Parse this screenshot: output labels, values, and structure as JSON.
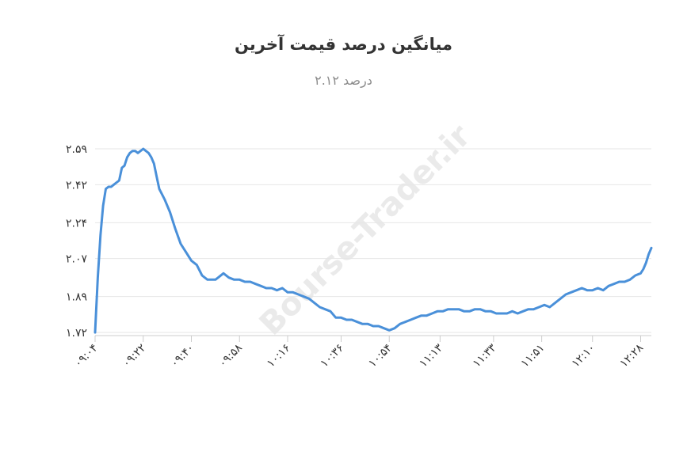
{
  "chart_data": {
    "type": "line",
    "title": "میانگین درصد قیمت آخرین",
    "subtitle": "درصد ۲.۱۲",
    "y_ticks": [
      "۱.۷۲",
      "۱.۸۹",
      "۲.۰۷",
      "۲.۲۴",
      "۲.۴۲",
      "۲.۵۹"
    ],
    "y_tick_values": [
      1.72,
      1.89,
      2.07,
      2.24,
      2.42,
      2.59
    ],
    "ylim": [
      1.72,
      2.59
    ],
    "x_ticks": [
      "۰۹:۰۴",
      "۰۹:۲۲",
      "۰۹:۴۰",
      "۰۹:۵۸",
      "۱۰:۱۶",
      "۱۰:۳۶",
      "۱۰:۵۴",
      "۱۱:۱۳",
      "۱۱:۳۳",
      "۱۱:۵۱",
      "۱۲:۱۰",
      "۱۲:۲۸"
    ],
    "x_tick_minutes": [
      544,
      562,
      580,
      598,
      616,
      636,
      654,
      673,
      693,
      711,
      730,
      748
    ],
    "xlim": [
      544,
      752
    ],
    "grid": true,
    "color": "#4a90d9",
    "series": [
      {
        "x": [
          544,
          545,
          546,
          547,
          548,
          549,
          550,
          551,
          553,
          554,
          555,
          556,
          557,
          558,
          559,
          560,
          561,
          562,
          563,
          564,
          565,
          566,
          567,
          568,
          570,
          572,
          574,
          576,
          578,
          580,
          582,
          584,
          585,
          586,
          588,
          589,
          590,
          592,
          594,
          596,
          598,
          600,
          602,
          604,
          606,
          608,
          610,
          612,
          614,
          616,
          618,
          620,
          622,
          624,
          626,
          628,
          630,
          632,
          634,
          636,
          638,
          640,
          642,
          644,
          646,
          648,
          650,
          652,
          654,
          656,
          658,
          660,
          662,
          664,
          666,
          668,
          670,
          672,
          674,
          676,
          678,
          680,
          682,
          684,
          686,
          688,
          690,
          692,
          694,
          696,
          698,
          700,
          702,
          704,
          706,
          708,
          710,
          712,
          714,
          716,
          718,
          720,
          722,
          724,
          726,
          728,
          730,
          732,
          734,
          736,
          738,
          740,
          742,
          744,
          746,
          748,
          749,
          750,
          751,
          752
        ],
        "y": [
          1.72,
          1.98,
          2.18,
          2.32,
          2.4,
          2.41,
          2.41,
          2.42,
          2.44,
          2.5,
          2.51,
          2.55,
          2.57,
          2.58,
          2.58,
          2.57,
          2.58,
          2.59,
          2.58,
          2.57,
          2.55,
          2.52,
          2.46,
          2.4,
          2.35,
          2.29,
          2.21,
          2.14,
          2.1,
          2.06,
          2.04,
          1.99,
          1.98,
          1.97,
          1.97,
          1.97,
          1.98,
          2.0,
          1.98,
          1.97,
          1.97,
          1.96,
          1.96,
          1.95,
          1.94,
          1.93,
          1.93,
          1.92,
          1.93,
          1.91,
          1.91,
          1.9,
          1.89,
          1.88,
          1.86,
          1.84,
          1.83,
          1.82,
          1.79,
          1.79,
          1.78,
          1.78,
          1.77,
          1.76,
          1.76,
          1.75,
          1.75,
          1.74,
          1.73,
          1.74,
          1.76,
          1.77,
          1.78,
          1.79,
          1.8,
          1.8,
          1.81,
          1.82,
          1.82,
          1.83,
          1.83,
          1.83,
          1.82,
          1.82,
          1.83,
          1.83,
          1.82,
          1.82,
          1.81,
          1.81,
          1.81,
          1.82,
          1.81,
          1.82,
          1.83,
          1.83,
          1.84,
          1.85,
          1.84,
          1.86,
          1.88,
          1.9,
          1.91,
          1.92,
          1.93,
          1.92,
          1.92,
          1.93,
          1.92,
          1.94,
          1.95,
          1.96,
          1.96,
          1.97,
          1.99,
          2.0,
          2.02,
          2.05,
          2.09,
          2.12
        ]
      }
    ]
  }
}
